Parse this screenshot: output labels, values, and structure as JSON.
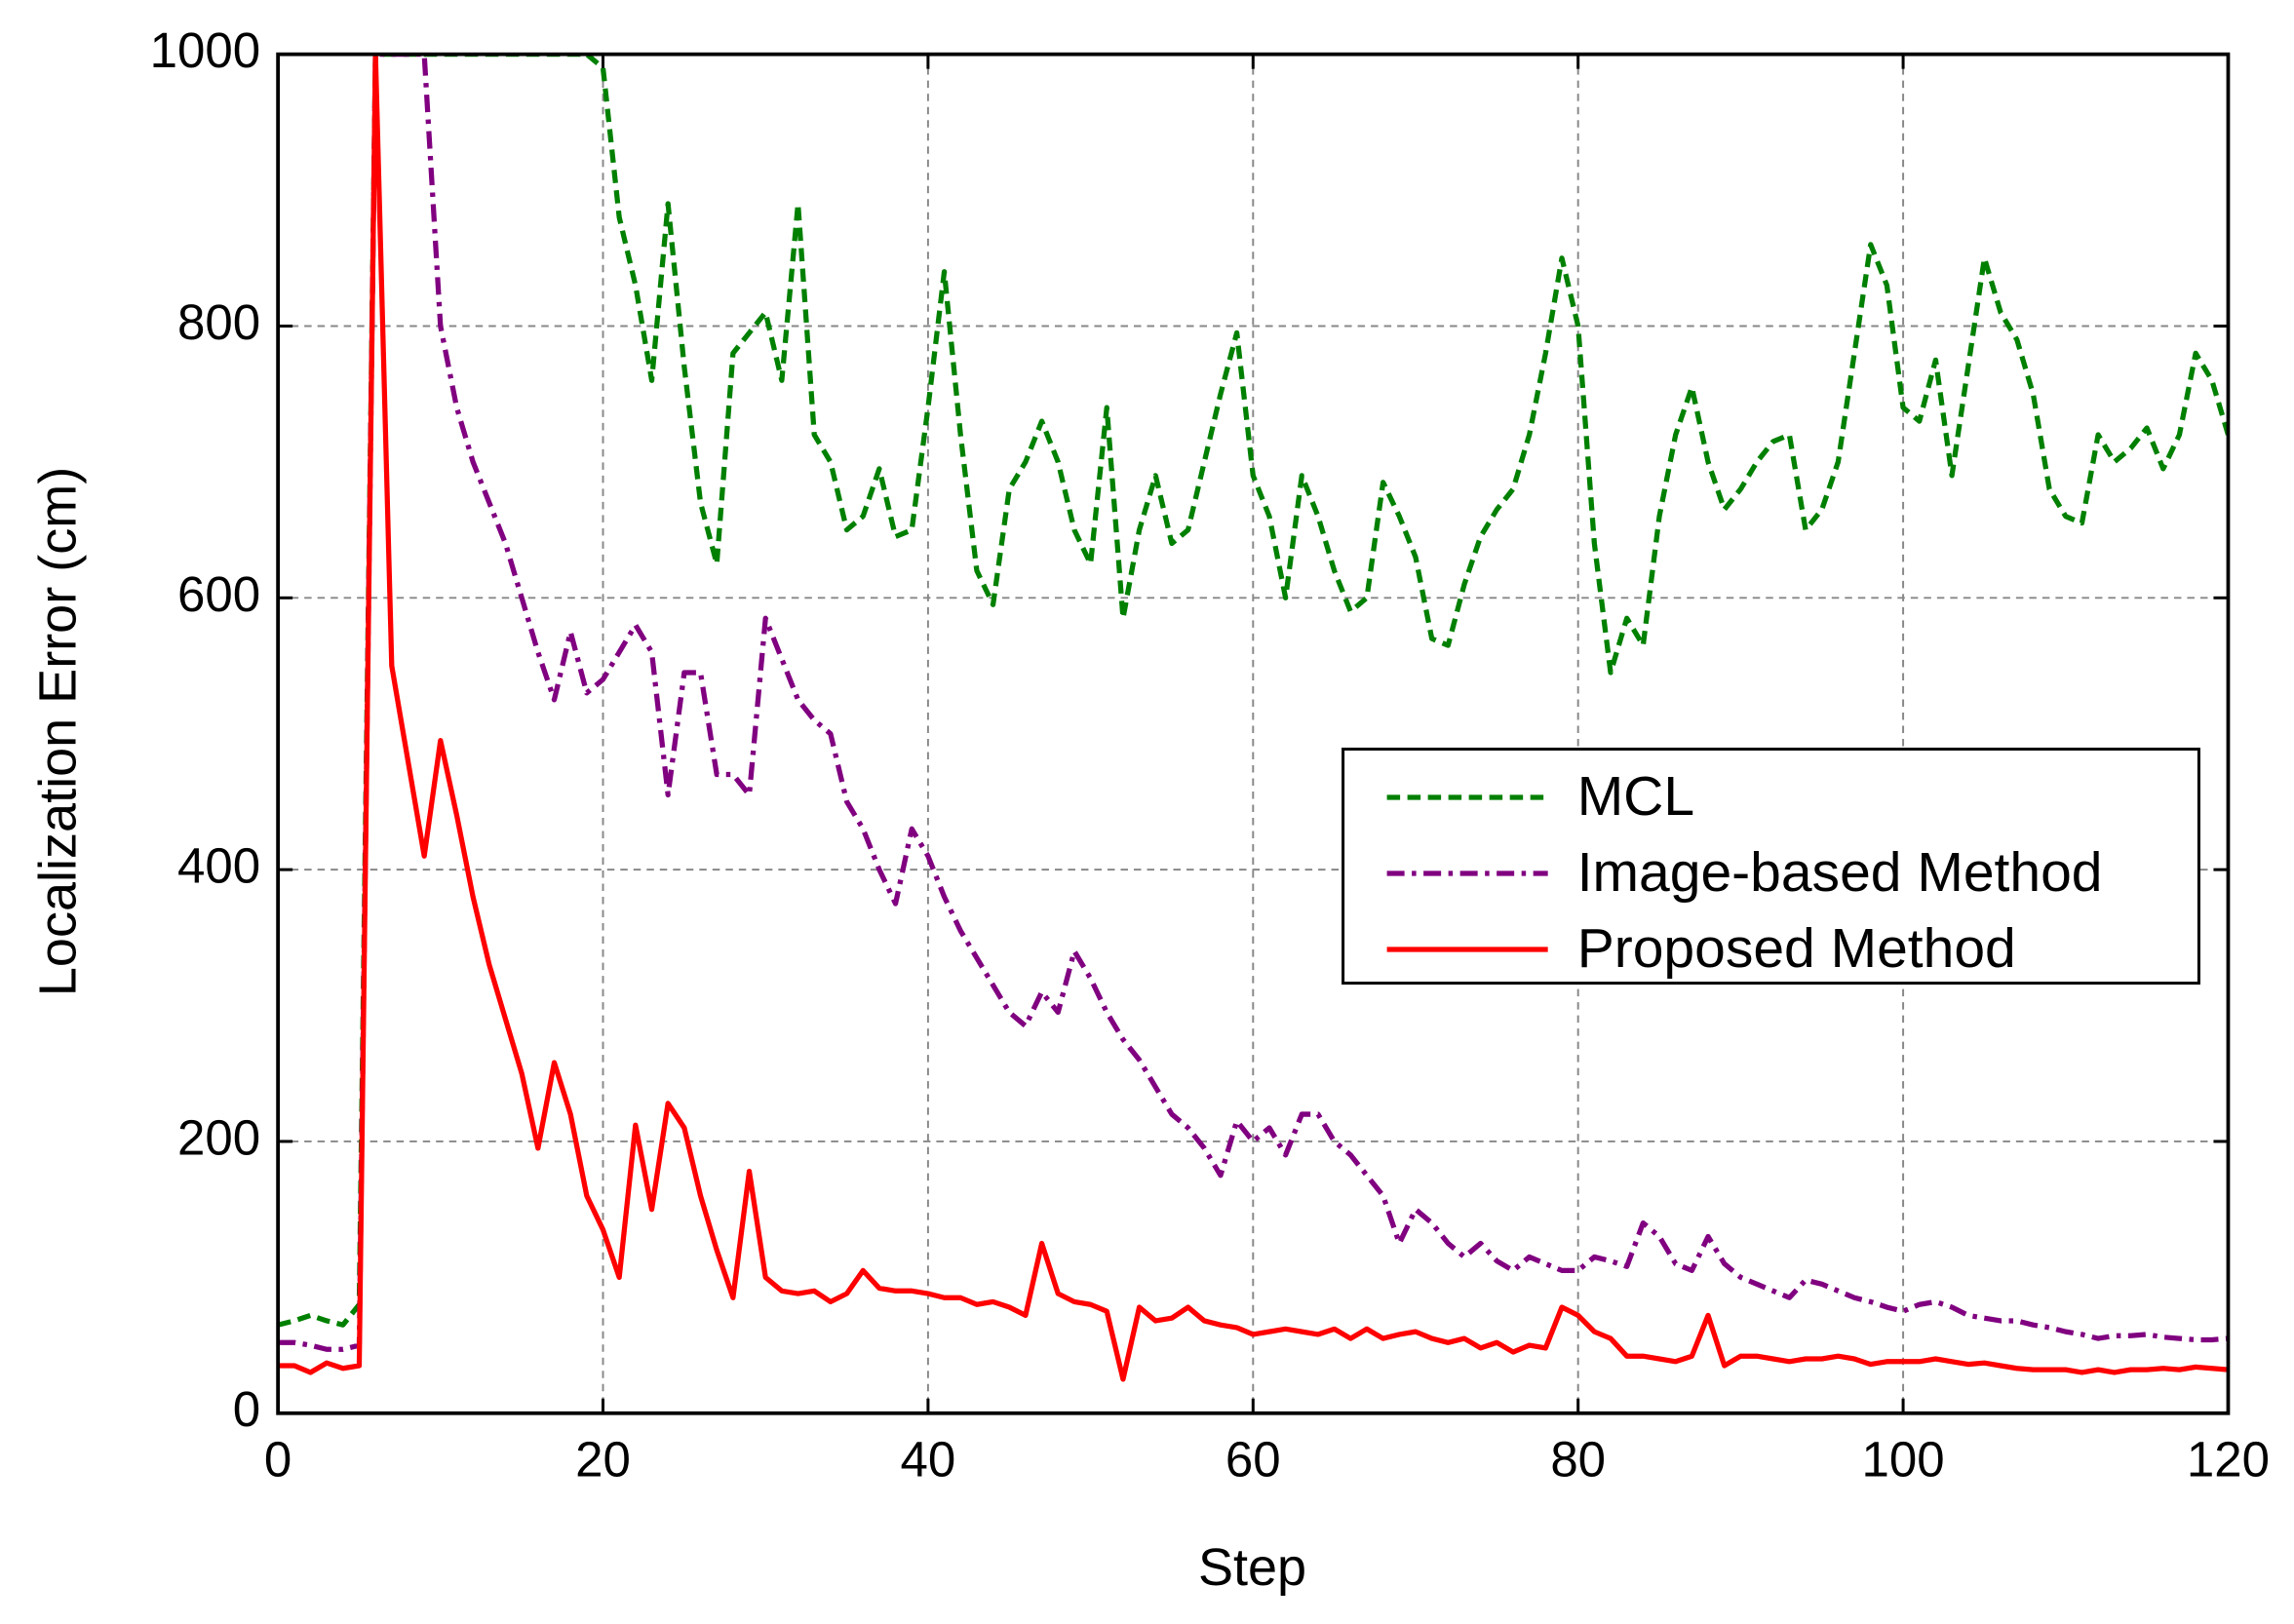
{
  "chart_data": {
    "type": "line",
    "xlabel": "Step",
    "ylabel": "Localization Error (cm)",
    "xlim": [
      0,
      120
    ],
    "ylim": [
      0,
      1000
    ],
    "xticks": [
      0,
      20,
      40,
      60,
      80,
      100,
      120
    ],
    "yticks": [
      0,
      200,
      400,
      600,
      800,
      1000
    ],
    "grid": true,
    "legend": "right",
    "x": [
      0,
      1,
      2,
      3,
      4,
      5,
      6,
      7,
      8,
      9,
      10,
      11,
      12,
      13,
      14,
      15,
      16,
      17,
      18,
      19,
      20,
      21,
      22,
      23,
      24,
      25,
      26,
      27,
      28,
      29,
      30,
      31,
      32,
      33,
      34,
      35,
      36,
      37,
      38,
      39,
      40,
      41,
      42,
      43,
      44,
      45,
      46,
      47,
      48,
      49,
      50,
      51,
      52,
      53,
      54,
      55,
      56,
      57,
      58,
      59,
      60,
      61,
      62,
      63,
      64,
      65,
      66,
      67,
      68,
      69,
      70,
      71,
      72,
      73,
      74,
      75,
      76,
      77,
      78,
      79,
      80,
      81,
      82,
      83,
      84,
      85,
      86,
      87,
      88,
      89,
      90,
      91,
      92,
      93,
      94,
      95,
      96,
      97,
      98,
      99,
      100,
      101,
      102,
      103,
      104,
      105,
      106,
      107,
      108,
      109,
      110,
      111,
      112,
      113,
      114,
      115,
      116,
      117,
      118,
      119,
      120
    ],
    "series": [
      {
        "name": "MCL",
        "color": "#008000",
        "dash": "dashed",
        "values": [
          65,
          68,
          72,
          68,
          65,
          80,
          1000,
          1000,
          1000,
          1000,
          1000,
          1000,
          1000,
          1000,
          1000,
          1000,
          1000,
          1000,
          1000,
          1000,
          990,
          880,
          830,
          760,
          890,
          770,
          670,
          625,
          780,
          795,
          810,
          760,
          890,
          720,
          700,
          650,
          660,
          695,
          645,
          650,
          740,
          840,
          720,
          620,
          595,
          680,
          700,
          730,
          700,
          650,
          625,
          740,
          585,
          650,
          690,
          640,
          650,
          700,
          750,
          795,
          690,
          660,
          600,
          690,
          660,
          620,
          590,
          600,
          685,
          660,
          630,
          570,
          565,
          610,
          645,
          665,
          680,
          720,
          780,
          850,
          800,
          640,
          545,
          585,
          565,
          660,
          720,
          755,
          700,
          665,
          680,
          700,
          715,
          720,
          650,
          665,
          700,
          780,
          860,
          830,
          740,
          730,
          775,
          690,
          770,
          850,
          810,
          790,
          750,
          680,
          660,
          655,
          720,
          700,
          710,
          725,
          695,
          720,
          780,
          760,
          720
        ]
      },
      {
        "name": "Image-based Method",
        "color": "#800080",
        "dash": "dashdot",
        "values": [
          52,
          52,
          50,
          47,
          47,
          50,
          1000,
          1000,
          1000,
          1000,
          800,
          740,
          700,
          670,
          640,
          600,
          560,
          525,
          575,
          530,
          540,
          560,
          580,
          560,
          455,
          545,
          545,
          470,
          470,
          455,
          585,
          555,
          525,
          510,
          500,
          450,
          430,
          400,
          375,
          430,
          410,
          380,
          355,
          335,
          315,
          295,
          285,
          310,
          295,
          340,
          320,
          295,
          275,
          260,
          240,
          220,
          210,
          195,
          175,
          215,
          200,
          210,
          190,
          220,
          220,
          200,
          190,
          175,
          160,
          125,
          150,
          140,
          125,
          115,
          125,
          112,
          105,
          115,
          110,
          105,
          105,
          115,
          112,
          108,
          140,
          130,
          110,
          105,
          130,
          110,
          100,
          95,
          90,
          85,
          98,
          95,
          90,
          85,
          82,
          78,
          75,
          80,
          82,
          78,
          72,
          70,
          68,
          68,
          65,
          63,
          60,
          58,
          55,
          57,
          57,
          58,
          56,
          55,
          54,
          54,
          55
        ]
      },
      {
        "name": "Proposed Method",
        "color": "#ff0000",
        "dash": "solid",
        "values": [
          35,
          35,
          30,
          37,
          33,
          35,
          1000,
          550,
          480,
          410,
          495,
          440,
          380,
          330,
          290,
          250,
          195,
          258,
          220,
          160,
          135,
          100,
          212,
          150,
          228,
          210,
          160,
          120,
          85,
          178,
          100,
          90,
          88,
          90,
          82,
          88,
          105,
          92,
          90,
          90,
          88,
          85,
          85,
          80,
          82,
          78,
          72,
          125,
          88,
          82,
          80,
          75,
          25,
          78,
          68,
          70,
          78,
          68,
          65,
          63,
          58,
          60,
          62,
          60,
          58,
          62,
          55,
          62,
          55,
          58,
          60,
          55,
          52,
          55,
          48,
          52,
          45,
          50,
          48,
          78,
          72,
          60,
          55,
          42,
          42,
          40,
          38,
          42,
          72,
          35,
          42,
          42,
          40,
          38,
          40,
          40,
          42,
          40,
          36,
          38,
          38,
          38,
          40,
          38,
          36,
          37,
          35,
          33,
          32,
          32,
          32,
          30,
          32,
          30,
          32,
          32,
          33,
          32,
          34,
          33,
          32
        ]
      }
    ]
  }
}
